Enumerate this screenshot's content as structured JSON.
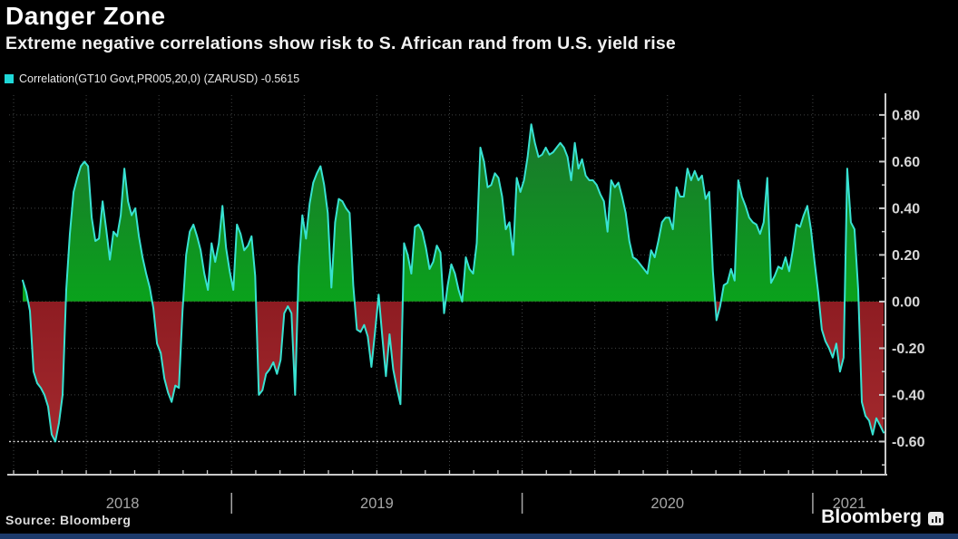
{
  "header": {
    "title": "Danger Zone",
    "subtitle": "Extreme negative correlations show risk to S. African rand from U.S. yield rise"
  },
  "legend": {
    "label": "Correlation(GT10 Govt,PR005,20,0) (ZARUSD) -0.5615",
    "swatch_color": "#1fd8d8",
    "swatch_icon": "cyan-square-swatch"
  },
  "footer": {
    "source": "Source: Bloomberg",
    "brand": "Bloomberg",
    "brand_icon": "bloomberg-terminal-chart-icon"
  },
  "chart_data": {
    "type": "area",
    "title": "Danger Zone",
    "series_name": "Correlation(GT10 Govt,PR005,20,0) (ZARUSD)",
    "last_value": -0.5615,
    "x_unit": "decimal_year",
    "x_start": 2018.2812,
    "x_step": 0.0125,
    "xlim": [
      2018.25,
      2021.25
    ],
    "ylim": [
      -0.742,
      0.885
    ],
    "yticks": [
      0.8,
      0.6,
      0.4,
      0.2,
      0,
      -0.2,
      -0.4,
      -0.6
    ],
    "ytick_labels": [
      "0.80",
      "0.60",
      "0.40",
      "0.20",
      "0.00",
      "-0.20",
      "-0.40",
      "-0.60"
    ],
    "y_minor_step": 0.1,
    "xtick_labels": [
      "2018",
      "2019",
      "2020",
      "2021"
    ],
    "year_boundaries": [
      2019,
      2020,
      2021
    ],
    "grid": "dotted, horizontal at 0.20 steps, vertical at quarters",
    "legend_position": "top-left",
    "highlight_gridline": -0.6,
    "baseline": 0,
    "colors": {
      "background": "#000000",
      "line": "#38e2d2",
      "area_positive_top": "#1e6e30",
      "area_positive_bottom": "#0aa21c",
      "area_negative_top": "#8e1c22",
      "area_negative_bottom": "#a82c30",
      "grid": "#9aa0a0",
      "grid_highlight": "#eeeeee",
      "axis": "#c9c9c9",
      "tick_label": "#d6d6d6",
      "year_label": "#a6a6a6"
    },
    "values": [
      0.09,
      0.04,
      -0.04,
      -0.3,
      -0.35,
      -0.37,
      -0.4,
      -0.45,
      -0.57,
      -0.6,
      -0.52,
      -0.4,
      0.05,
      0.29,
      0.47,
      0.53,
      0.58,
      0.6,
      0.58,
      0.36,
      0.26,
      0.27,
      0.43,
      0.31,
      0.18,
      0.3,
      0.28,
      0.37,
      0.57,
      0.43,
      0.37,
      0.4,
      0.28,
      0.19,
      0.12,
      0.06,
      -0.03,
      -0.18,
      -0.22,
      -0.33,
      -0.39,
      -0.43,
      -0.36,
      -0.37,
      -0.04,
      0.2,
      0.3,
      0.33,
      0.28,
      0.22,
      0.12,
      0.05,
      0.25,
      0.17,
      0.25,
      0.41,
      0.23,
      0.13,
      0.05,
      0.33,
      0.29,
      0.22,
      0.24,
      0.28,
      0.11,
      -0.4,
      -0.38,
      -0.31,
      -0.29,
      -0.26,
      -0.31,
      -0.25,
      -0.05,
      -0.02,
      -0.05,
      -0.4,
      0.15,
      0.37,
      0.27,
      0.42,
      0.51,
      0.55,
      0.58,
      0.5,
      0.38,
      0.06,
      0.34,
      0.44,
      0.43,
      0.4,
      0.38,
      0.07,
      -0.12,
      -0.13,
      -0.1,
      -0.15,
      -0.28,
      -0.13,
      0.03,
      -0.15,
      -0.32,
      -0.14,
      -0.29,
      -0.37,
      -0.44,
      0.25,
      0.2,
      0.12,
      0.32,
      0.33,
      0.3,
      0.23,
      0.14,
      0.17,
      0.24,
      0.21,
      -0.05,
      0.07,
      0.16,
      0.12,
      0.05,
      0.0,
      0.19,
      0.14,
      0.12,
      0.25,
      0.66,
      0.6,
      0.49,
      0.5,
      0.55,
      0.53,
      0.45,
      0.31,
      0.34,
      0.2,
      0.53,
      0.47,
      0.52,
      0.62,
      0.76,
      0.68,
      0.62,
      0.63,
      0.66,
      0.63,
      0.64,
      0.66,
      0.68,
      0.66,
      0.62,
      0.52,
      0.68,
      0.57,
      0.61,
      0.54,
      0.52,
      0.52,
      0.5,
      0.46,
      0.43,
      0.3,
      0.52,
      0.49,
      0.51,
      0.45,
      0.38,
      0.26,
      0.19,
      0.18,
      0.16,
      0.14,
      0.12,
      0.22,
      0.19,
      0.26,
      0.34,
      0.36,
      0.36,
      0.31,
      0.49,
      0.45,
      0.45,
      0.57,
      0.52,
      0.56,
      0.52,
      0.54,
      0.44,
      0.47,
      0.13,
      -0.08,
      -0.02,
      0.07,
      0.08,
      0.14,
      0.09,
      0.52,
      0.45,
      0.41,
      0.36,
      0.34,
      0.33,
      0.29,
      0.34,
      0.53,
      0.08,
      0.11,
      0.15,
      0.14,
      0.19,
      0.13,
      0.22,
      0.33,
      0.32,
      0.37,
      0.41,
      0.31,
      0.17,
      0.04,
      -0.12,
      -0.17,
      -0.2,
      -0.24,
      -0.18,
      -0.3,
      -0.24,
      0.57,
      0.34,
      0.31,
      0.05,
      -0.43,
      -0.49,
      -0.51,
      -0.57,
      -0.5,
      -0.53,
      -0.5615
    ]
  }
}
